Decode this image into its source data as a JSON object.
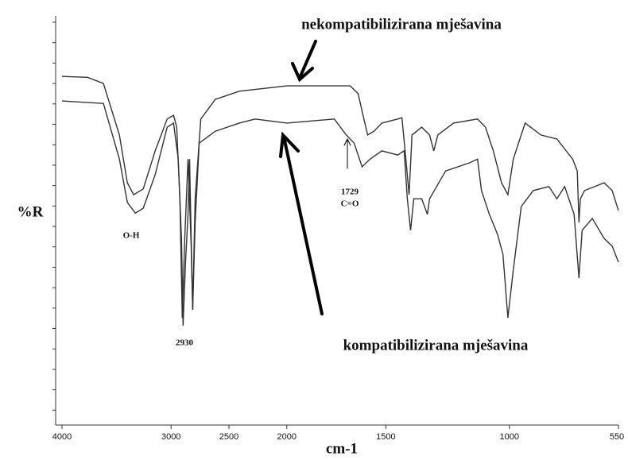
{
  "chart_data": {
    "type": "line",
    "x_label": "cm-1",
    "y_label": "%R",
    "annotations": [
      "nekompatibilizirana mješavina",
      "kompatibilizirana mješavina",
      "O-H",
      "2930",
      "1729",
      "C=O"
    ],
    "xlim": [
      4000,
      550
    ],
    "xticks": [
      4000,
      3000,
      2500,
      2000,
      1500,
      1000,
      550
    ],
    "ylim": [
      0,
      100
    ],
    "series": [
      {
        "name": "nekompatibilizirana mješavina",
        "color": "#333333",
        "x": [
          4000,
          3766,
          3620,
          3474,
          3401,
          3343,
          3255,
          3146,
          3036,
          2979,
          2951,
          2924,
          2903,
          2882,
          2854,
          2826,
          2813,
          2792,
          2743,
          2618,
          2411,
          2000,
          1680,
          1640,
          1620,
          1592,
          1560,
          1520,
          1452,
          1435,
          1419,
          1406,
          1394,
          1355,
          1323,
          1306,
          1290,
          1226,
          1129,
          1097,
          1065,
          1032,
          1006,
          984,
          935,
          870,
          804,
          739,
          720,
          713,
          707,
          690,
          609,
          576,
          550
        ],
        "values": [
          85.2,
          85.0,
          83.5,
          70.9,
          59.2,
          56.3,
          57.7,
          67.0,
          74.8,
          75.7,
          72.8,
          55.3,
          26.2,
          45.6,
          65.0,
          43.7,
          28.2,
          55.3,
          74.8,
          79.6,
          81.6,
          82.9,
          82.9,
          81.0,
          76.7,
          70.9,
          71.8,
          73.8,
          74.8,
          75.1,
          65.0,
          56.3,
          70.9,
          72.8,
          70.9,
          67.0,
          70.9,
          73.8,
          74.8,
          72.8,
          67.0,
          59.2,
          56.3,
          65.0,
          73.8,
          70.9,
          69.9,
          65.0,
          62.1,
          49.5,
          55.3,
          57.3,
          59.2,
          57.3,
          52.4
        ]
      },
      {
        "name": "kompatibilizirana mješavina",
        "color": "#333333",
        "x": [
          4000,
          3620,
          3474,
          3401,
          3328,
          3255,
          3146,
          3036,
          2979,
          2938,
          2910,
          2896,
          2875,
          2854,
          2840,
          2826,
          2813,
          2792,
          2757,
          2618,
          2411,
          2274,
          2000,
          1760,
          1700,
          1660,
          1620,
          1580,
          1520,
          1452,
          1426,
          1413,
          1400,
          1387,
          1355,
          1332,
          1323,
          1258,
          1161,
          1129,
          1113,
          1081,
          1048,
          1026,
          1006,
          984,
          951,
          902,
          837,
          804,
          772,
          733,
          713,
          700,
          658,
          609,
          576,
          550
        ],
        "values": [
          79.2,
          78.6,
          65.0,
          54.4,
          51.8,
          53.0,
          61.2,
          72.8,
          73.8,
          65.0,
          45.6,
          24.3,
          39.8,
          51.5,
          65.0,
          45.6,
          28.2,
          49.5,
          68.9,
          71.8,
          73.8,
          74.8,
          73.8,
          74.8,
          70.9,
          68.9,
          63.1,
          65.0,
          67.0,
          66.0,
          67.0,
          55.3,
          47.6,
          55.3,
          55.3,
          51.5,
          55.3,
          62.1,
          64.1,
          65.0,
          57.3,
          51.5,
          46.6,
          41.7,
          26.2,
          37.9,
          53.4,
          57.3,
          58.3,
          55.3,
          58.3,
          51.5,
          35.9,
          47.6,
          50.5,
          45.6,
          43.7,
          39.8
        ]
      }
    ]
  }
}
